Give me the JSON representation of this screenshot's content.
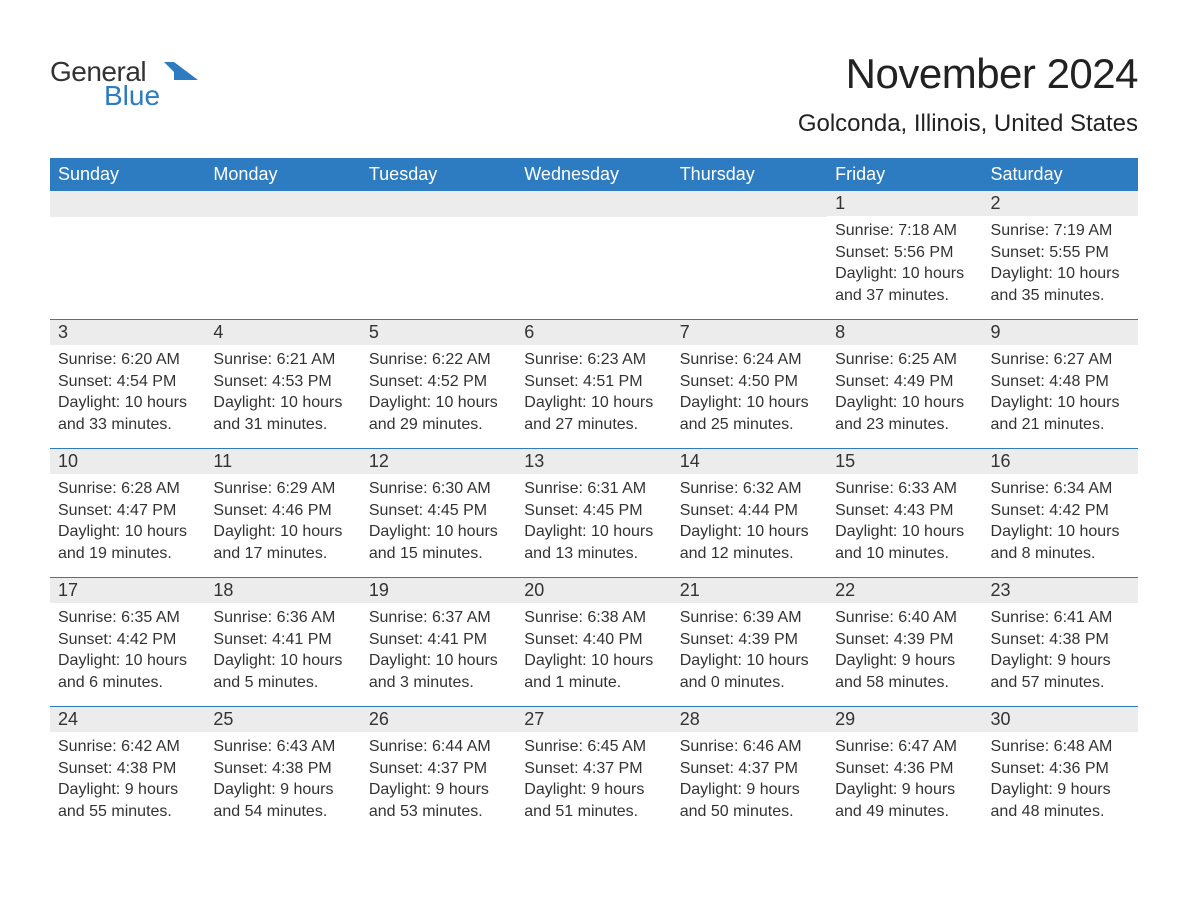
{
  "logo": {
    "general": "General",
    "blue": "Blue",
    "shape_color": "#2d7cc1",
    "general_color": "#333333",
    "blue_color": "#2d7cc1"
  },
  "header": {
    "month_title": "November 2024",
    "location": "Golconda, Illinois, United States"
  },
  "colors": {
    "header_bg": "#2d7cc1",
    "header_text": "#ffffff",
    "day_bar_bg": "#ececec",
    "week_border": "#2d7cc1",
    "body_text": "#333333",
    "page_bg": "#ffffff"
  },
  "typography": {
    "month_title_fontsize": 42,
    "location_fontsize": 24,
    "weekday_fontsize": 18,
    "daynum_fontsize": 18,
    "body_fontsize": 16
  },
  "calendar": {
    "weekdays": [
      "Sunday",
      "Monday",
      "Tuesday",
      "Wednesday",
      "Thursday",
      "Friday",
      "Saturday"
    ],
    "weeks": [
      [
        {
          "empty": true
        },
        {
          "empty": true
        },
        {
          "empty": true
        },
        {
          "empty": true
        },
        {
          "empty": true
        },
        {
          "day": "1",
          "sunrise": "Sunrise: 7:18 AM",
          "sunset": "Sunset: 5:56 PM",
          "daylight1": "Daylight: 10 hours",
          "daylight2": "and 37 minutes."
        },
        {
          "day": "2",
          "sunrise": "Sunrise: 7:19 AM",
          "sunset": "Sunset: 5:55 PM",
          "daylight1": "Daylight: 10 hours",
          "daylight2": "and 35 minutes."
        }
      ],
      [
        {
          "day": "3",
          "sunrise": "Sunrise: 6:20 AM",
          "sunset": "Sunset: 4:54 PM",
          "daylight1": "Daylight: 10 hours",
          "daylight2": "and 33 minutes."
        },
        {
          "day": "4",
          "sunrise": "Sunrise: 6:21 AM",
          "sunset": "Sunset: 4:53 PM",
          "daylight1": "Daylight: 10 hours",
          "daylight2": "and 31 minutes."
        },
        {
          "day": "5",
          "sunrise": "Sunrise: 6:22 AM",
          "sunset": "Sunset: 4:52 PM",
          "daylight1": "Daylight: 10 hours",
          "daylight2": "and 29 minutes."
        },
        {
          "day": "6",
          "sunrise": "Sunrise: 6:23 AM",
          "sunset": "Sunset: 4:51 PM",
          "daylight1": "Daylight: 10 hours",
          "daylight2": "and 27 minutes."
        },
        {
          "day": "7",
          "sunrise": "Sunrise: 6:24 AM",
          "sunset": "Sunset: 4:50 PM",
          "daylight1": "Daylight: 10 hours",
          "daylight2": "and 25 minutes."
        },
        {
          "day": "8",
          "sunrise": "Sunrise: 6:25 AM",
          "sunset": "Sunset: 4:49 PM",
          "daylight1": "Daylight: 10 hours",
          "daylight2": "and 23 minutes."
        },
        {
          "day": "9",
          "sunrise": "Sunrise: 6:27 AM",
          "sunset": "Sunset: 4:48 PM",
          "daylight1": "Daylight: 10 hours",
          "daylight2": "and 21 minutes."
        }
      ],
      [
        {
          "day": "10",
          "sunrise": "Sunrise: 6:28 AM",
          "sunset": "Sunset: 4:47 PM",
          "daylight1": "Daylight: 10 hours",
          "daylight2": "and 19 minutes."
        },
        {
          "day": "11",
          "sunrise": "Sunrise: 6:29 AM",
          "sunset": "Sunset: 4:46 PM",
          "daylight1": "Daylight: 10 hours",
          "daylight2": "and 17 minutes."
        },
        {
          "day": "12",
          "sunrise": "Sunrise: 6:30 AM",
          "sunset": "Sunset: 4:45 PM",
          "daylight1": "Daylight: 10 hours",
          "daylight2": "and 15 minutes."
        },
        {
          "day": "13",
          "sunrise": "Sunrise: 6:31 AM",
          "sunset": "Sunset: 4:45 PM",
          "daylight1": "Daylight: 10 hours",
          "daylight2": "and 13 minutes."
        },
        {
          "day": "14",
          "sunrise": "Sunrise: 6:32 AM",
          "sunset": "Sunset: 4:44 PM",
          "daylight1": "Daylight: 10 hours",
          "daylight2": "and 12 minutes."
        },
        {
          "day": "15",
          "sunrise": "Sunrise: 6:33 AM",
          "sunset": "Sunset: 4:43 PM",
          "daylight1": "Daylight: 10 hours",
          "daylight2": "and 10 minutes."
        },
        {
          "day": "16",
          "sunrise": "Sunrise: 6:34 AM",
          "sunset": "Sunset: 4:42 PM",
          "daylight1": "Daylight: 10 hours",
          "daylight2": "and 8 minutes."
        }
      ],
      [
        {
          "day": "17",
          "sunrise": "Sunrise: 6:35 AM",
          "sunset": "Sunset: 4:42 PM",
          "daylight1": "Daylight: 10 hours",
          "daylight2": "and 6 minutes."
        },
        {
          "day": "18",
          "sunrise": "Sunrise: 6:36 AM",
          "sunset": "Sunset: 4:41 PM",
          "daylight1": "Daylight: 10 hours",
          "daylight2": "and 5 minutes."
        },
        {
          "day": "19",
          "sunrise": "Sunrise: 6:37 AM",
          "sunset": "Sunset: 4:41 PM",
          "daylight1": "Daylight: 10 hours",
          "daylight2": "and 3 minutes."
        },
        {
          "day": "20",
          "sunrise": "Sunrise: 6:38 AM",
          "sunset": "Sunset: 4:40 PM",
          "daylight1": "Daylight: 10 hours",
          "daylight2": "and 1 minute."
        },
        {
          "day": "21",
          "sunrise": "Sunrise: 6:39 AM",
          "sunset": "Sunset: 4:39 PM",
          "daylight1": "Daylight: 10 hours",
          "daylight2": "and 0 minutes."
        },
        {
          "day": "22",
          "sunrise": "Sunrise: 6:40 AM",
          "sunset": "Sunset: 4:39 PM",
          "daylight1": "Daylight: 9 hours",
          "daylight2": "and 58 minutes."
        },
        {
          "day": "23",
          "sunrise": "Sunrise: 6:41 AM",
          "sunset": "Sunset: 4:38 PM",
          "daylight1": "Daylight: 9 hours",
          "daylight2": "and 57 minutes."
        }
      ],
      [
        {
          "day": "24",
          "sunrise": "Sunrise: 6:42 AM",
          "sunset": "Sunset: 4:38 PM",
          "daylight1": "Daylight: 9 hours",
          "daylight2": "and 55 minutes."
        },
        {
          "day": "25",
          "sunrise": "Sunrise: 6:43 AM",
          "sunset": "Sunset: 4:38 PM",
          "daylight1": "Daylight: 9 hours",
          "daylight2": "and 54 minutes."
        },
        {
          "day": "26",
          "sunrise": "Sunrise: 6:44 AM",
          "sunset": "Sunset: 4:37 PM",
          "daylight1": "Daylight: 9 hours",
          "daylight2": "and 53 minutes."
        },
        {
          "day": "27",
          "sunrise": "Sunrise: 6:45 AM",
          "sunset": "Sunset: 4:37 PM",
          "daylight1": "Daylight: 9 hours",
          "daylight2": "and 51 minutes."
        },
        {
          "day": "28",
          "sunrise": "Sunrise: 6:46 AM",
          "sunset": "Sunset: 4:37 PM",
          "daylight1": "Daylight: 9 hours",
          "daylight2": "and 50 minutes."
        },
        {
          "day": "29",
          "sunrise": "Sunrise: 6:47 AM",
          "sunset": "Sunset: 4:36 PM",
          "daylight1": "Daylight: 9 hours",
          "daylight2": "and 49 minutes."
        },
        {
          "day": "30",
          "sunrise": "Sunrise: 6:48 AM",
          "sunset": "Sunset: 4:36 PM",
          "daylight1": "Daylight: 9 hours",
          "daylight2": "and 48 minutes."
        }
      ]
    ]
  }
}
